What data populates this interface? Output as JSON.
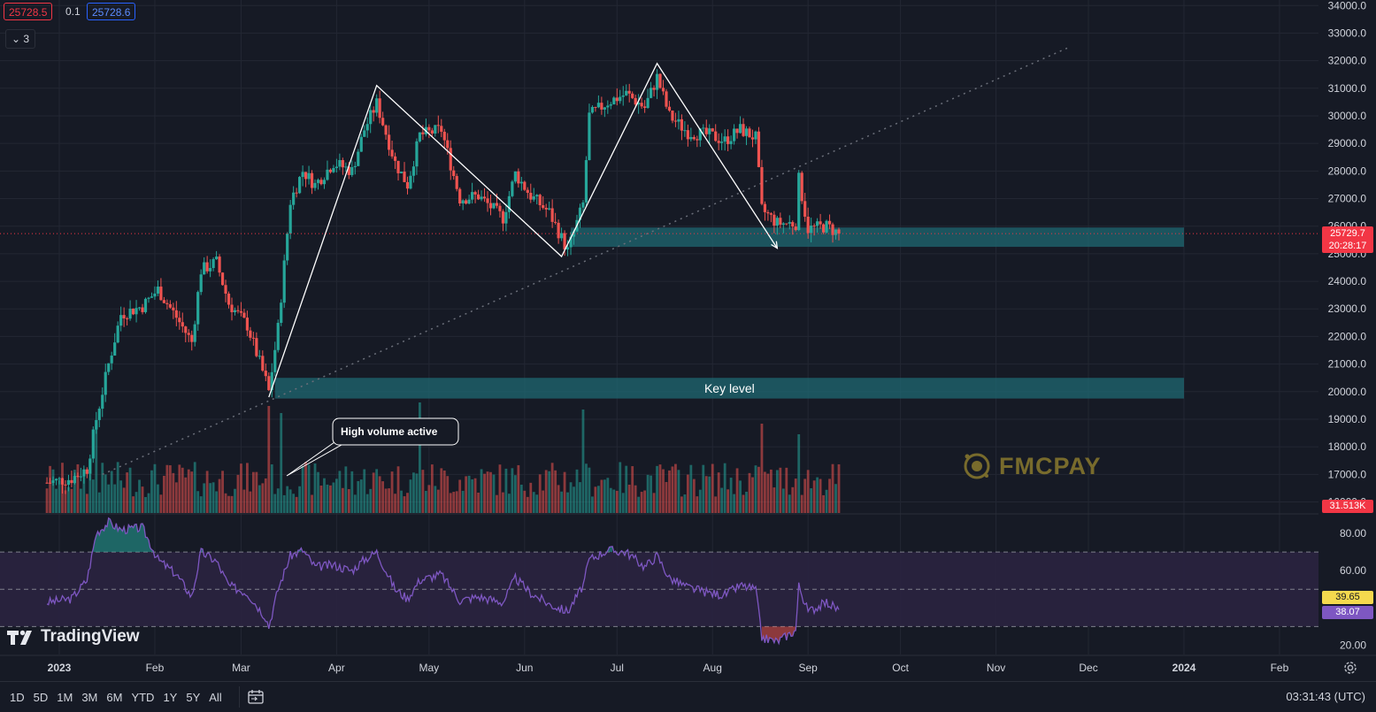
{
  "header": {
    "bid": "25728.5",
    "spread": "0.1",
    "ask": "25728.6",
    "indicator_toggle_label": "3",
    "indicator_toggle_icon": "chevron-down-icon"
  },
  "price_tags": {
    "last_price": "25729.7",
    "countdown": "20:28:17",
    "volume": "31.513K",
    "rsi_a": "39.65",
    "rsi_b": "38.07"
  },
  "annotations": {
    "key_level": "Key level",
    "callout": "High volume active"
  },
  "branding": {
    "tradingview": "TradingView",
    "watermark": "FMCPAY"
  },
  "toolbar": {
    "ranges": [
      "1D",
      "5D",
      "1M",
      "3M",
      "6M",
      "YTD",
      "1Y",
      "5Y",
      "All"
    ],
    "clock": "03:31:43 (UTC)"
  },
  "colors": {
    "background": "#161a25",
    "up": "#26a69a",
    "down": "#ef5350",
    "zone": "#1e6b74",
    "rsi_line": "#7e57c2",
    "rsi_band": "#2a2440"
  },
  "chart_data": {
    "type": "candlestick",
    "price_axis": {
      "ylim": [
        15600,
        34200
      ],
      "ticks": [
        "34000.0",
        "33000.0",
        "32000.0",
        "31000.0",
        "30000.0",
        "29000.0",
        "28000.0",
        "27000.0",
        "26000.0",
        "25000.0",
        "24000.0",
        "23000.0",
        "22000.0",
        "21000.0",
        "20000.0",
        "19000.0",
        "18000.0",
        "17000.0",
        "16000.0"
      ]
    },
    "time_axis": {
      "labels": [
        "2023",
        "Feb",
        "Mar",
        "Apr",
        "May",
        "Jun",
        "Jul",
        "Aug",
        "Sep",
        "Oct",
        "Nov",
        "Dec",
        "2024",
        "Feb"
      ]
    },
    "price_path": [
      [
        "2022-12-28",
        16700
      ],
      [
        "2023-01-05",
        16850
      ],
      [
        "2023-01-10",
        17200
      ],
      [
        "2023-01-13",
        19000
      ],
      [
        "2023-01-17",
        21000
      ],
      [
        "2023-01-21",
        22800
      ],
      [
        "2023-01-28",
        23100
      ],
      [
        "2023-02-02",
        23700
      ],
      [
        "2023-02-08",
        22700
      ],
      [
        "2023-02-13",
        21800
      ],
      [
        "2023-02-16",
        24400
      ],
      [
        "2023-02-21",
        24700
      ],
      [
        "2023-02-25",
        23200
      ],
      [
        "2023-03-03",
        22400
      ],
      [
        "2023-03-09",
        20400
      ],
      [
        "2023-03-10",
        20000
      ],
      [
        "2023-03-13",
        22300
      ],
      [
        "2023-03-17",
        26900
      ],
      [
        "2023-03-21",
        28000
      ],
      [
        "2023-03-25",
        27500
      ],
      [
        "2023-03-31",
        28300
      ],
      [
        "2023-04-06",
        28000
      ],
      [
        "2023-04-10",
        29500
      ],
      [
        "2023-04-14",
        30450
      ],
      [
        "2023-04-20",
        28300
      ],
      [
        "2023-04-24",
        27500
      ],
      [
        "2023-04-28",
        29300
      ],
      [
        "2023-05-05",
        29500
      ],
      [
        "2023-05-11",
        27000
      ],
      [
        "2023-05-17",
        27100
      ],
      [
        "2023-05-25",
        26300
      ],
      [
        "2023-05-29",
        27900
      ],
      [
        "2023-06-03",
        27100
      ],
      [
        "2023-06-09",
        26500
      ],
      [
        "2023-06-15",
        25100
      ],
      [
        "2023-06-20",
        26800
      ],
      [
        "2023-06-22",
        30000
      ],
      [
        "2023-06-28",
        30500
      ],
      [
        "2023-07-04",
        30800
      ],
      [
        "2023-07-10",
        30300
      ],
      [
        "2023-07-14",
        31400
      ],
      [
        "2023-07-18",
        30000
      ],
      [
        "2023-07-24",
        29400
      ],
      [
        "2023-07-31",
        29300
      ],
      [
        "2023-08-05",
        29100
      ],
      [
        "2023-08-10",
        29500
      ],
      [
        "2023-08-15",
        29200
      ],
      [
        "2023-08-17",
        26600
      ],
      [
        "2023-08-22",
        26100
      ],
      [
        "2023-08-28",
        26100
      ],
      [
        "2023-08-29",
        27700
      ],
      [
        "2023-09-01",
        25900
      ],
      [
        "2023-09-07",
        26000
      ],
      [
        "2023-09-11",
        25729.7
      ]
    ],
    "zones": [
      {
        "from": "2023-06-16",
        "to": "2024-01-01",
        "low": 25250,
        "high": 25950
      },
      {
        "from": "2023-03-12",
        "to": "2024-01-01",
        "low": 19750,
        "high": 20500
      }
    ],
    "pattern_lines": [
      [
        [
          "2023-03-10",
          19800
        ],
        [
          "2023-04-14",
          31100
        ],
        [
          "2023-06-13",
          24900
        ],
        [
          "2023-07-14",
          31900
        ],
        [
          "2023-08-22",
          25200
        ]
      ]
    ],
    "trend_line": [
      [
        "2023-01-15",
        17000
      ],
      [
        "2023-11-25",
        32500
      ]
    ],
    "volume": {
      "last": "31.513K",
      "spikes": [
        [
          "2023-01-13",
          0.7
        ],
        [
          "2023-03-10",
          0.95
        ],
        [
          "2023-03-14",
          0.85
        ],
        [
          "2023-04-28",
          1.0
        ],
        [
          "2023-06-20",
          0.9
        ],
        [
          "2023-08-17",
          0.7
        ],
        [
          "2023-08-29",
          0.55
        ]
      ]
    },
    "rsi": {
      "ticks": [
        "80.00",
        "60.00",
        "20.00"
      ],
      "levels": [
        70,
        50,
        30
      ],
      "ylim": [
        15,
        90
      ],
      "values": [
        [
          "2022-12-28",
          43
        ],
        [
          "2023-01-05",
          45
        ],
        [
          "2023-01-10",
          55
        ],
        [
          "2023-01-13",
          80
        ],
        [
          "2023-01-17",
          86
        ],
        [
          "2023-01-21",
          82
        ],
        [
          "2023-01-28",
          83
        ],
        [
          "2023-02-02",
          66
        ],
        [
          "2023-02-08",
          58
        ],
        [
          "2023-02-13",
          46
        ],
        [
          "2023-02-16",
          70
        ],
        [
          "2023-02-21",
          65
        ],
        [
          "2023-02-25",
          52
        ],
        [
          "2023-03-03",
          48
        ],
        [
          "2023-03-09",
          35
        ],
        [
          "2023-03-10",
          30
        ],
        [
          "2023-03-13",
          50
        ],
        [
          "2023-03-17",
          68
        ],
        [
          "2023-03-21",
          71
        ],
        [
          "2023-03-25",
          62
        ],
        [
          "2023-03-31",
          63
        ],
        [
          "2023-04-06",
          60
        ],
        [
          "2023-04-10",
          66
        ],
        [
          "2023-04-14",
          70
        ],
        [
          "2023-04-20",
          50
        ],
        [
          "2023-04-24",
          45
        ],
        [
          "2023-04-28",
          55
        ],
        [
          "2023-05-05",
          58
        ],
        [
          "2023-05-11",
          44
        ],
        [
          "2023-05-17",
          46
        ],
        [
          "2023-05-25",
          43
        ],
        [
          "2023-05-29",
          56
        ],
        [
          "2023-06-03",
          48
        ],
        [
          "2023-06-09",
          42
        ],
        [
          "2023-06-15",
          38
        ],
        [
          "2023-06-20",
          52
        ],
        [
          "2023-06-22",
          66
        ],
        [
          "2023-06-28",
          71
        ],
        [
          "2023-07-04",
          70
        ],
        [
          "2023-07-10",
          62
        ],
        [
          "2023-07-14",
          68
        ],
        [
          "2023-07-18",
          56
        ],
        [
          "2023-07-24",
          51
        ],
        [
          "2023-07-31",
          48
        ],
        [
          "2023-08-05",
          47
        ],
        [
          "2023-08-10",
          52
        ],
        [
          "2023-08-15",
          50
        ],
        [
          "2023-08-17",
          24
        ],
        [
          "2023-08-22",
          22
        ],
        [
          "2023-08-28",
          28
        ],
        [
          "2023-08-29",
          52
        ],
        [
          "2023-09-01",
          38
        ],
        [
          "2023-09-07",
          43
        ],
        [
          "2023-09-11",
          39
        ]
      ]
    },
    "grid": true
  }
}
